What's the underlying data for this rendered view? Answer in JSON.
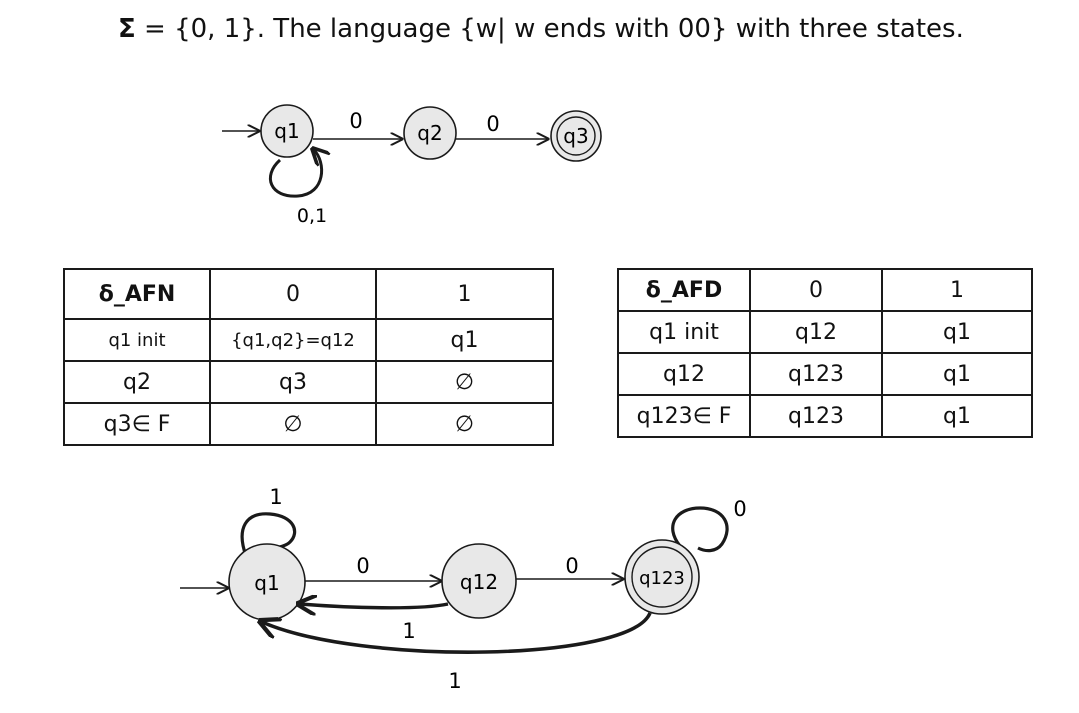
{
  "title": {
    "sigma": "Σ",
    "text": " = {0, 1}. The language {w| w ends with 00} with three states."
  },
  "nfa": {
    "states": [
      "q1",
      "q2",
      "q3"
    ],
    "edges": {
      "q1_q2": "0",
      "q2_q3": "0",
      "q1_loop": "0,1"
    }
  },
  "afn_table": {
    "header": [
      "δ_AFN",
      "0",
      "1"
    ],
    "rows": [
      [
        "q1 init",
        "{q1,q2}=q12",
        "q1"
      ],
      [
        "q2",
        "q3",
        "∅"
      ],
      [
        "q3∈ F",
        "∅",
        "∅"
      ]
    ]
  },
  "afd_table": {
    "header": [
      "δ_AFD",
      "0",
      "1"
    ],
    "rows": [
      [
        "q1 init",
        "q12",
        "q1"
      ],
      [
        "q12",
        "q123",
        "q1"
      ],
      [
        "q123∈ F",
        "q123",
        "q1"
      ]
    ]
  },
  "dfa": {
    "states": [
      "q1",
      "q12",
      "q123"
    ],
    "edges": {
      "q1_loop": "1",
      "q1_q12": "0",
      "q12_q1": "1",
      "q12_q123": "0",
      "q123_loop": "0",
      "q123_q1": "1"
    }
  },
  "colors": {
    "state_fill": "#e8e8e8",
    "stroke": "#1a1a1a",
    "background": "#ffffff"
  }
}
